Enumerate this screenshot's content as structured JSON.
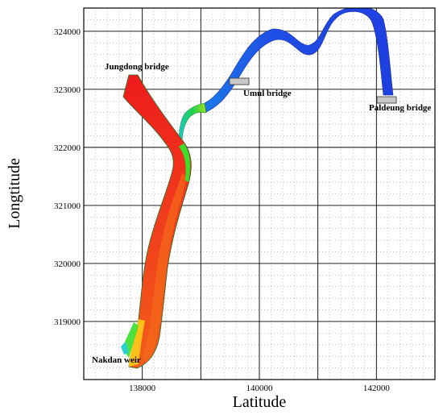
{
  "chart_data": {
    "type": "map",
    "xlabel": "Latitude",
    "ylabel": "Longtitude",
    "xlim": [
      137000,
      143000
    ],
    "ylim": [
      318000,
      324400
    ],
    "x_ticks": [
      138000,
      140000,
      142000
    ],
    "x_tick_labels": [
      "138000",
      "140000",
      "142000"
    ],
    "y_ticks": [
      319000,
      320000,
      321000,
      322000,
      323000,
      324000
    ],
    "y_tick_labels": [
      "319000",
      "320000",
      "321000",
      "322000",
      "323000",
      "324000"
    ],
    "grid": true,
    "minor_grid": true,
    "annotations": [
      {
        "id": "jungdong",
        "text": "Jungdong bridge"
      },
      {
        "id": "umul",
        "text": "Umul bridge",
        "x": 139720,
        "y": 323100
      },
      {
        "id": "paldeung",
        "text": "Paldeung bridge",
        "x": 142350,
        "y": 322790
      },
      {
        "id": "nakdan",
        "text": "Nakdan weir"
      }
    ],
    "colors": {
      "high": "#ee1c1c",
      "mid_high": "#f2531a",
      "mid": "#ffd21a",
      "low_mid": "#1fd14a",
      "low": "#1ea8e8",
      "lowest": "#1f3fe0"
    }
  }
}
